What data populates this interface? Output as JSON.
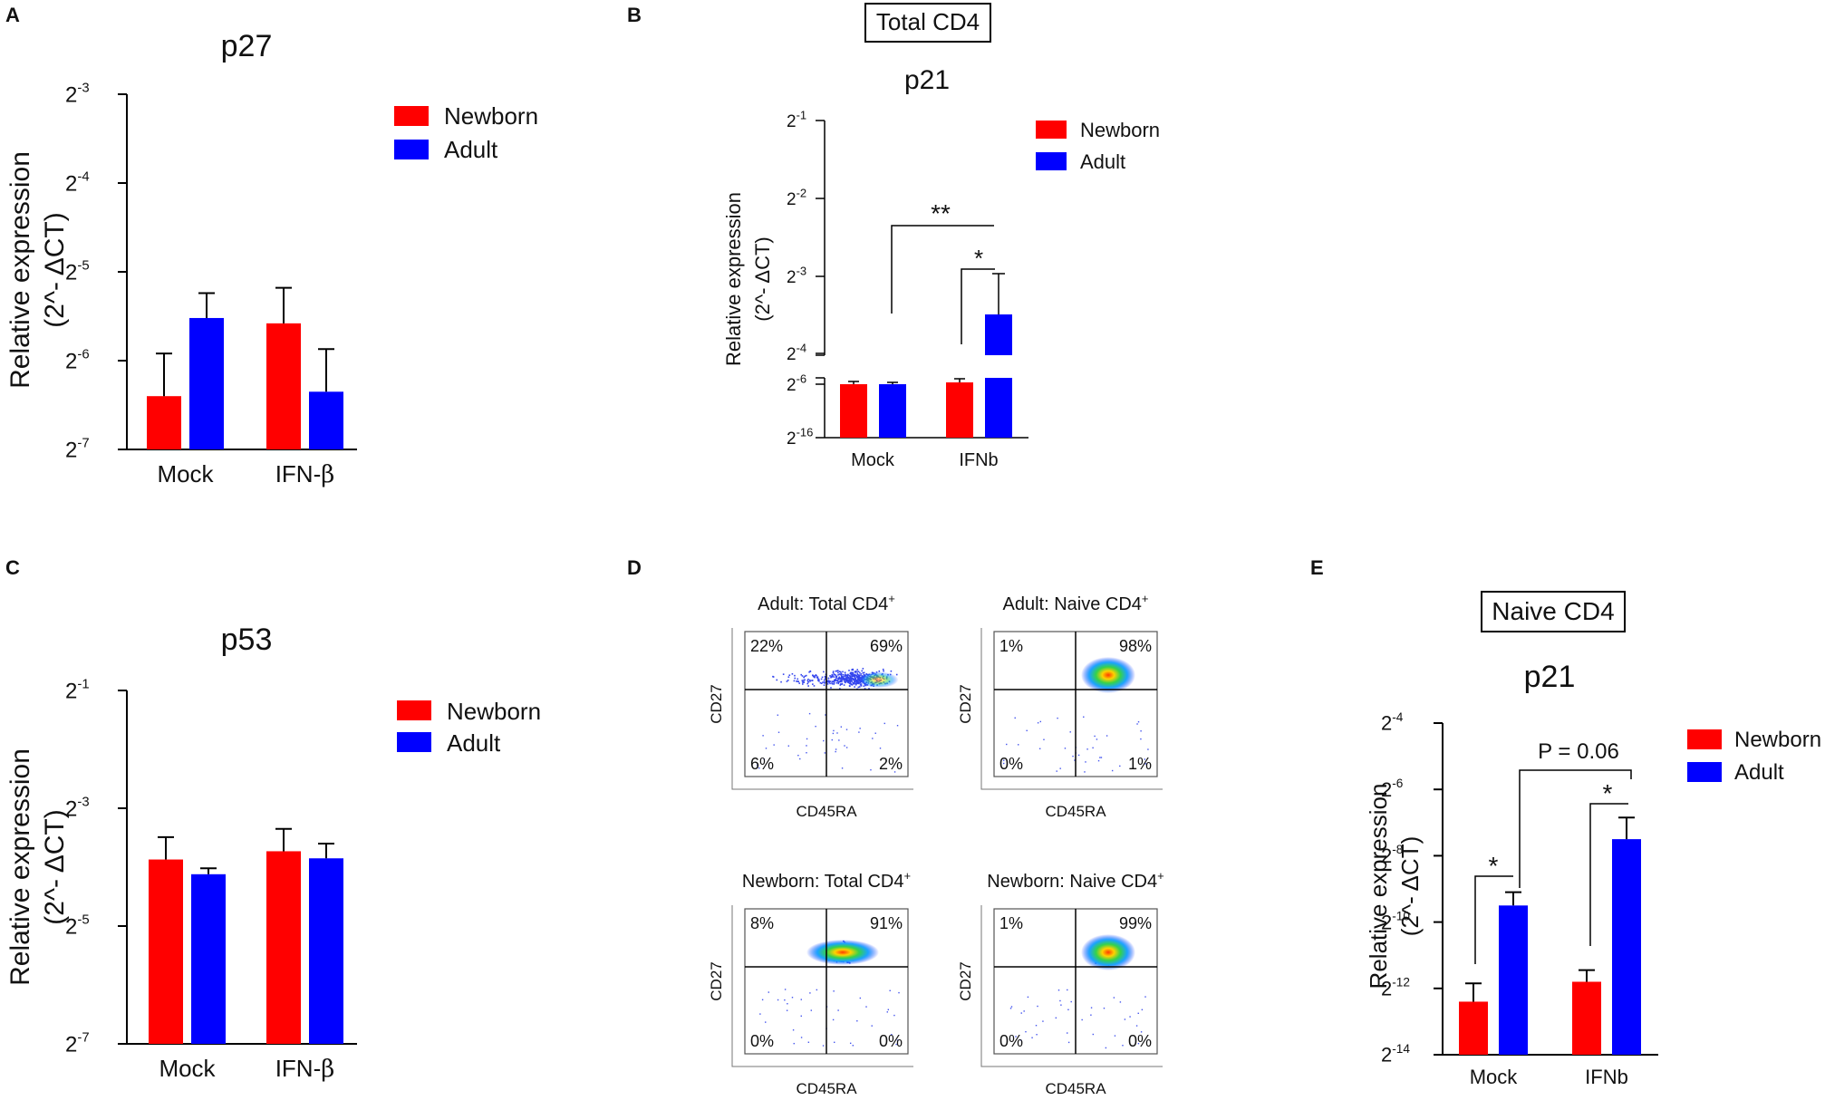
{
  "colors": {
    "newborn": "#FF0000",
    "adult": "#0000FF",
    "axis": "#000000"
  },
  "panel_labels": {
    "A": "A",
    "B": "B",
    "C": "C",
    "D": "D",
    "E": "E"
  },
  "boxes": {
    "B": "Total CD4",
    "E": "Naive CD4"
  },
  "legend": {
    "newborn": "Newborn",
    "adult": "Adult"
  },
  "ylabel": {
    "line1": "Relative expression",
    "line2": "(2^- ΔCT)"
  },
  "chart_data": [
    {
      "id": "A",
      "type": "bar",
      "title": "p27",
      "ylabel": "Relative expression (2^- ΔCT)",
      "ylim_exp": [
        -7,
        -3
      ],
      "yticks": [
        {
          "base": "2",
          "exp": "-3",
          "v": -3
        },
        {
          "base": "2",
          "exp": "-4",
          "v": -4
        },
        {
          "base": "2",
          "exp": "-5",
          "v": -5
        },
        {
          "base": "2",
          "exp": "-6",
          "v": -6
        },
        {
          "base": "2",
          "exp": "-7",
          "v": -7
        }
      ],
      "categories": [
        {
          "pre": "Mock",
          "greek": ""
        },
        {
          "pre": "IFN-",
          "greek": "β"
        }
      ],
      "series": [
        {
          "name": "Newborn",
          "values": [
            -6.4,
            -5.58
          ],
          "errors": [
            0.48,
            0.4
          ]
        },
        {
          "name": "Adult",
          "values": [
            -5.52,
            -6.35
          ],
          "errors": [
            0.28,
            0.48
          ]
        }
      ]
    },
    {
      "id": "B",
      "type": "bar",
      "title": "p21",
      "ylabel": "Relative expression (2^- ΔCT)",
      "yticks": [
        {
          "base": "2",
          "exp": "-1"
        },
        {
          "base": "2",
          "exp": "-2"
        },
        {
          "base": "2",
          "exp": "-3"
        },
        {
          "base": "2",
          "exp": "-4"
        },
        {
          "base": "2",
          "exp": "-6"
        },
        {
          "base": "2",
          "exp": "-16"
        }
      ],
      "categories": [
        {
          "pre": "Mock",
          "greek": ""
        },
        {
          "pre": "IFNb",
          "greek": ""
        }
      ],
      "series": [
        {
          "name": "Newborn",
          "values": [
            "≈2^-6",
            "≈2^-6"
          ]
        },
        {
          "name": "Adult",
          "values": [
            "≈2^-6",
            "-3.5"
          ],
          "errors": [
            "small",
            "0.5"
          ]
        }
      ],
      "annotations": [
        {
          "text": "**",
          "compare": "Mock vs IFNb (Adult)"
        },
        {
          "text": "*",
          "compare": "IFNb: Newborn vs Adult"
        }
      ]
    },
    {
      "id": "C",
      "type": "bar",
      "title": "p53",
      "ylabel": "Relative expression (2^- ΔCT)",
      "ylim_exp": [
        -7,
        -1
      ],
      "yticks": [
        {
          "base": "2",
          "exp": "-1",
          "v": -1
        },
        {
          "base": "2",
          "exp": "-3",
          "v": -3
        },
        {
          "base": "2",
          "exp": "-5",
          "v": -5
        },
        {
          "base": "2",
          "exp": "-7",
          "v": -7
        }
      ],
      "categories": [
        {
          "pre": "Mock",
          "greek": ""
        },
        {
          "pre": "IFN-",
          "greek": "β"
        }
      ],
      "series": [
        {
          "name": "Newborn",
          "values": [
            -3.87,
            -3.73
          ],
          "errors": [
            0.38,
            0.38
          ]
        },
        {
          "name": "Adult",
          "values": [
            -4.12,
            -3.85
          ],
          "errors": [
            0.1,
            0.25
          ]
        }
      ]
    },
    {
      "id": "E",
      "type": "bar",
      "title": "p21",
      "ylabel": "Relative expression (2^- ΔCT)",
      "ylim_exp": [
        -14,
        -4
      ],
      "yticks": [
        {
          "base": "2",
          "exp": "-4",
          "v": -4
        },
        {
          "base": "2",
          "exp": "-6",
          "v": -6
        },
        {
          "base": "2",
          "exp": "-8",
          "v": -8
        },
        {
          "base": "2",
          "exp": "-10",
          "v": -10
        },
        {
          "base": "2",
          "exp": "-12",
          "v": -12
        },
        {
          "base": "2",
          "exp": "-14",
          "v": -14
        }
      ],
      "categories": [
        {
          "pre": "Mock",
          "greek": ""
        },
        {
          "pre": "IFNb",
          "greek": ""
        }
      ],
      "series": [
        {
          "name": "Newborn",
          "values": [
            -12.4,
            -11.8
          ],
          "errors": [
            0.55,
            0.35
          ]
        },
        {
          "name": "Adult",
          "values": [
            -9.5,
            -7.5
          ],
          "errors": [
            0.4,
            0.65
          ]
        }
      ],
      "annotations": [
        {
          "text": "*",
          "compare": "Mock: Newborn vs Adult"
        },
        {
          "text": "*",
          "compare": "IFNb: Newborn vs Adult"
        },
        {
          "text": "P = 0.06",
          "compare": "Adult: Mock vs IFNb"
        }
      ]
    }
  ],
  "flow": {
    "xlabel": "CD45RA",
    "ylabel": "CD27",
    "plots": [
      {
        "title": "Adult: Total CD4",
        "sup": "+",
        "q": {
          "ul": "22%",
          "ur": "69%",
          "ll": "6%",
          "lr": "2%"
        }
      },
      {
        "title": "Adult: Naive CD4",
        "sup": "+",
        "q": {
          "ul": "1%",
          "ur": "98%",
          "ll": "0%",
          "lr": "1%"
        }
      },
      {
        "title": "Newborn: Total CD4",
        "sup": "+",
        "q": {
          "ul": "8%",
          "ur": "91%",
          "ll": "0%",
          "lr": "0%"
        }
      },
      {
        "title": "Newborn: Naive CD4",
        "sup": "+",
        "q": {
          "ul": "1%",
          "ur": "99%",
          "ll": "0%",
          "lr": "0%"
        }
      }
    ]
  }
}
